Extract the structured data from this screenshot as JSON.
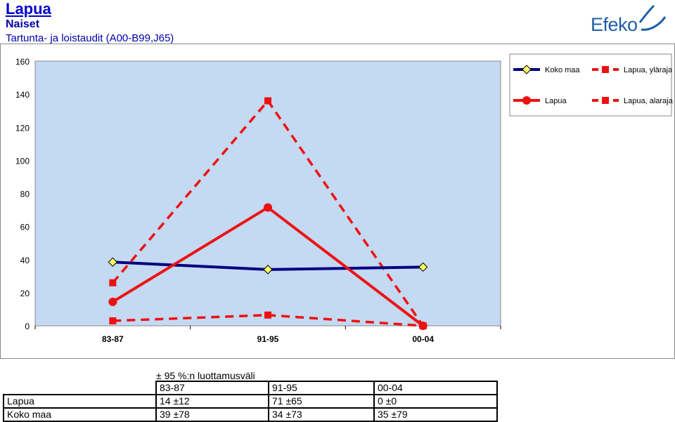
{
  "header": {
    "title": "Lapua",
    "subtitle": "Naiset",
    "description": "Tartunta- ja loistaudit (A00-B99,J65)",
    "logo_text": "Efeko"
  },
  "chart_data": {
    "type": "line",
    "categories": [
      "83-87",
      "91-95",
      "00-04"
    ],
    "ylim": [
      0,
      160
    ],
    "yticks": [
      0,
      20,
      40,
      60,
      80,
      100,
      120,
      140,
      160
    ],
    "grid": false,
    "legend_position": "top-right",
    "plot_background": "#c4d9f2",
    "series": [
      {
        "name": "Koko maa",
        "values": [
          38.5,
          34,
          35.5
        ],
        "color": "#00007f",
        "style": "solid",
        "marker": "diamond"
      },
      {
        "name": "Lapua, yläraja",
        "values": [
          26,
          136,
          0
        ],
        "color": "#ee1111",
        "style": "dashed",
        "marker": "square"
      },
      {
        "name": "Lapua",
        "values": [
          14.5,
          71.5,
          0
        ],
        "color": "#ee1111",
        "style": "solid",
        "marker": "circle"
      },
      {
        "name": "Lapua, alaraja",
        "values": [
          3,
          6.5,
          0
        ],
        "color": "#ee1111",
        "style": "dashed",
        "marker": "square"
      }
    ]
  },
  "ci_table": {
    "title": "± 95 %:n luottamusväli",
    "headers": [
      "83-87",
      "91-95",
      "00-04"
    ],
    "rows": [
      {
        "label": "Lapua",
        "values": [
          "14 ±12",
          "71 ±65",
          "0 ±0"
        ]
      },
      {
        "label": "Koko maa",
        "values": [
          "39 ±78",
          "34 ±73",
          "35 ±79"
        ]
      }
    ]
  }
}
